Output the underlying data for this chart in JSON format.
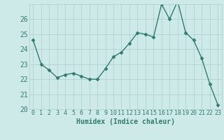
{
  "xlabel": "Humidex (Indice chaleur)",
  "x": [
    0,
    1,
    2,
    3,
    4,
    5,
    6,
    7,
    8,
    9,
    10,
    11,
    12,
    13,
    14,
    15,
    16,
    17,
    18,
    19,
    20,
    21,
    22,
    23
  ],
  "y": [
    24.6,
    23.0,
    22.6,
    22.1,
    22.3,
    22.4,
    22.2,
    22.0,
    22.0,
    22.7,
    23.5,
    23.8,
    24.4,
    25.1,
    25.0,
    24.8,
    27.0,
    26.0,
    27.2,
    25.1,
    24.6,
    23.4,
    21.7,
    20.3
  ],
  "line_color": "#2e7d6e",
  "marker": "D",
  "marker_size": 2.5,
  "bg_color": "#ceeae8",
  "grid_color": "#aacfcc",
  "tick_color": "#2e7d6e",
  "label_color": "#2e7d6e",
  "ylim": [
    20,
    27
  ],
  "yticks": [
    20,
    21,
    22,
    23,
    24,
    25,
    26
  ],
  "xticks": [
    0,
    1,
    2,
    3,
    4,
    5,
    6,
    7,
    8,
    9,
    10,
    11,
    12,
    13,
    14,
    15,
    16,
    17,
    18,
    19,
    20,
    21,
    22,
    23
  ],
  "xlabel_fontsize": 7,
  "ytick_fontsize": 7,
  "xtick_fontsize": 6,
  "linewidth": 1.0
}
